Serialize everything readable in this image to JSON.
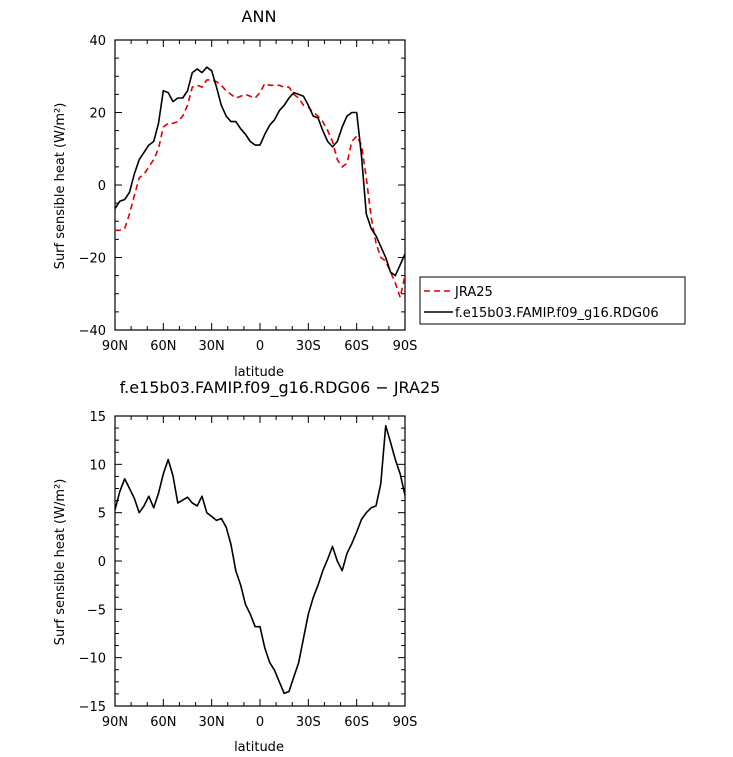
{
  "chart_data": [
    {
      "type": "line",
      "title": "ANN",
      "xlabel": "latitude",
      "ylabel": "Surf sensible heat (W/m²)",
      "xlim": [
        90,
        -90
      ],
      "ylim": [
        -40,
        40
      ],
      "xticks": [
        90,
        60,
        30,
        0,
        -30,
        -60,
        -90
      ],
      "xtick_labels": [
        "90N",
        "60N",
        "30N",
        "0",
        "30S",
        "60S",
        "90S"
      ],
      "yticks": [
        -40,
        -20,
        0,
        20,
        40
      ],
      "ytick_labels": [
        "−40",
        "−20",
        "0",
        "20",
        "40"
      ],
      "legend_position": "right",
      "series": [
        {
          "name": "JRA25",
          "color": "#e00000",
          "dash": "dashed",
          "x": [
            90,
            87,
            84,
            81,
            78,
            75,
            72,
            69,
            66,
            63,
            60,
            57,
            54,
            51,
            48,
            45,
            42,
            39,
            36,
            33,
            30,
            27,
            24,
            21,
            18,
            15,
            12,
            9,
            6,
            3,
            0,
            -3,
            -6,
            -9,
            -12,
            -15,
            -18,
            -21,
            -24,
            -27,
            -30,
            -33,
            -36,
            -39,
            -42,
            -45,
            -48,
            -51,
            -54,
            -57,
            -60,
            -63,
            -66,
            -69,
            -72,
            -75,
            -78,
            -81,
            -84,
            -87,
            -90
          ],
          "y": [
            -12.5,
            -12.5,
            -12,
            -8,
            -3,
            2,
            3,
            5,
            7,
            10,
            16,
            17,
            17,
            17.5,
            19,
            22,
            27,
            27.5,
            27,
            29,
            29,
            28.5,
            27.5,
            26,
            25,
            24,
            24.5,
            25,
            24.5,
            24,
            25.5,
            28,
            27.5,
            27.5,
            27.5,
            27,
            27,
            25,
            24,
            22,
            21.5,
            20,
            19,
            17.5,
            15,
            12,
            7,
            5,
            6,
            12,
            13.5,
            11,
            2,
            -9,
            -16,
            -20,
            -21,
            -24,
            -27,
            -31,
            -25
          ]
        },
        {
          "name": "f.e15b03.FAMIP.f09_g16.RDG06",
          "color": "#000000",
          "dash": "solid",
          "x": [
            90,
            87,
            84,
            81,
            78,
            75,
            72,
            69,
            66,
            63,
            60,
            57,
            54,
            51,
            48,
            45,
            42,
            39,
            36,
            33,
            30,
            27,
            24,
            21,
            18,
            15,
            12,
            9,
            6,
            3,
            0,
            -3,
            -6,
            -9,
            -12,
            -15,
            -18,
            -21,
            -24,
            -27,
            -30,
            -33,
            -36,
            -39,
            -42,
            -45,
            -48,
            -51,
            -54,
            -57,
            -60,
            -63,
            -66,
            -69,
            -72,
            -75,
            -78,
            -81,
            -84,
            -87,
            -90
          ],
          "y": [
            -6.5,
            -4.5,
            -4,
            -2,
            3,
            7,
            9,
            11,
            12,
            17,
            26,
            25.5,
            23,
            24,
            24,
            26,
            31,
            32,
            31,
            32.5,
            31.5,
            27,
            22,
            19,
            17.5,
            17.5,
            15.5,
            14,
            12,
            11,
            11,
            14,
            16.5,
            18,
            20.5,
            22,
            24,
            25.5,
            25,
            24.5,
            22,
            19,
            18.5,
            15,
            12,
            10.5,
            12,
            16,
            19,
            20,
            20,
            8,
            -8,
            -12,
            -14,
            -17,
            -20,
            -24,
            -25,
            -22,
            -19
          ]
        }
      ]
    },
    {
      "type": "line",
      "title": "f.e15b03.FAMIP.f09_g16.RDG06 − JRA25",
      "xlabel": "latitude",
      "ylabel": "Surf sensible heat (W/m²)",
      "xlim": [
        90,
        -90
      ],
      "ylim": [
        -15,
        15
      ],
      "xticks": [
        90,
        60,
        30,
        0,
        -30,
        -60,
        -90
      ],
      "xtick_labels": [
        "90N",
        "60N",
        "30N",
        "0",
        "30S",
        "60S",
        "90S"
      ],
      "yticks": [
        -15,
        -10,
        -5,
        0,
        5,
        10,
        15
      ],
      "ytick_labels": [
        "−15",
        "−10",
        "−5",
        "0",
        "5",
        "10",
        "15"
      ],
      "series": [
        {
          "color": "#000000",
          "dash": "solid",
          "x": [
            90,
            87,
            84,
            81,
            78,
            75,
            72,
            69,
            66,
            63,
            60,
            57,
            54,
            51,
            48,
            45,
            42,
            39,
            36,
            33,
            30,
            27,
            24,
            21,
            18,
            15,
            12,
            9,
            6,
            3,
            0,
            -3,
            -6,
            -9,
            -12,
            -15,
            -18,
            -21,
            -24,
            -27,
            -30,
            -33,
            -36,
            -39,
            -42,
            -45,
            -48,
            -51,
            -54,
            -57,
            -60,
            -63,
            -66,
            -69,
            -72,
            -75,
            -78,
            -81,
            -84,
            -87,
            -90
          ],
          "y": [
            5.3,
            7.2,
            8.5,
            7.5,
            6.5,
            5.0,
            5.7,
            6.7,
            5.5,
            7.0,
            9.0,
            10.5,
            8.8,
            6.0,
            6.3,
            6.6,
            6.0,
            5.7,
            6.7,
            5.0,
            4.6,
            4.2,
            4.4,
            3.5,
            1.7,
            -1.0,
            -2.5,
            -4.5,
            -5.5,
            -6.8,
            -6.8,
            -9.0,
            -10.5,
            -11.3,
            -12.5,
            -13.7,
            -13.5,
            -12.0,
            -10.5,
            -8.0,
            -5.5,
            -3.8,
            -2.5,
            -1.0,
            0.2,
            1.5,
            0.0,
            -1.0,
            0.8,
            1.8,
            3.0,
            4.3,
            5.0,
            5.5,
            5.7,
            8.0,
            14.0,
            12.3,
            10.5,
            9.0,
            6.8
          ]
        }
      ]
    }
  ]
}
